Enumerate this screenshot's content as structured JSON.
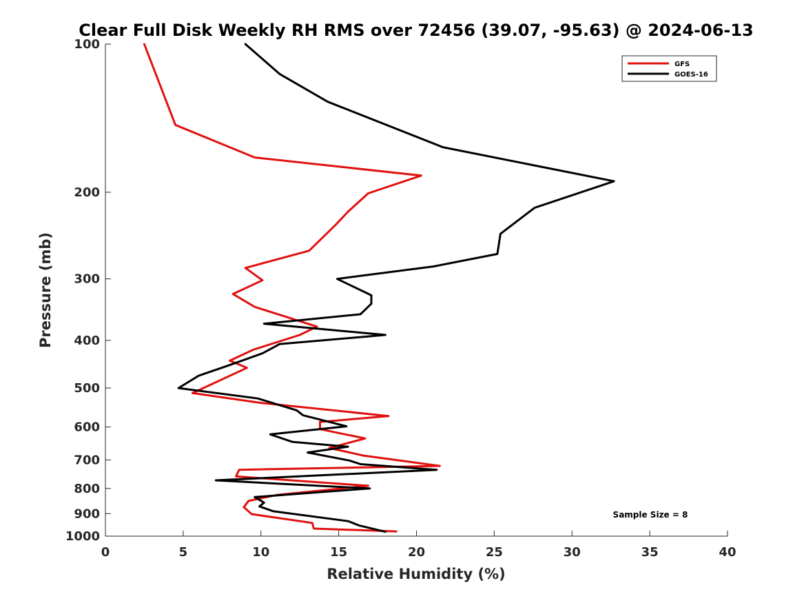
{
  "chart_data": {
    "type": "line",
    "title": "Clear Full Disk Weekly RH RMS over 72456 (39.07, -95.63) @ 2024-06-13",
    "xlabel": "Relative Humidity (%)",
    "ylabel": "Pressure (mb)",
    "xlim": [
      0,
      40
    ],
    "ylim": [
      100,
      1000
    ],
    "yscale": "log",
    "y_reversed": true,
    "x_ticks": [
      0,
      5,
      10,
      15,
      20,
      25,
      30,
      35,
      40
    ],
    "y_ticks": [
      100,
      200,
      300,
      400,
      500,
      600,
      700,
      800,
      900,
      1000
    ],
    "legend_position": "top-right",
    "annotation": "Sample Size = 8",
    "series": [
      {
        "name": "GFS",
        "color": "#e0100f",
        "points": [
          [
            2.5,
            100
          ],
          [
            4.5,
            146
          ],
          [
            9.6,
            170
          ],
          [
            20.3,
            185
          ],
          [
            16.9,
            201
          ],
          [
            15.6,
            219
          ],
          [
            14.8,
            233
          ],
          [
            13.1,
            263
          ],
          [
            9.0,
            285
          ],
          [
            10.1,
            302
          ],
          [
            8.2,
            322
          ],
          [
            9.6,
            342
          ],
          [
            13.6,
            375
          ],
          [
            12.5,
            390
          ],
          [
            9.5,
            418
          ],
          [
            8.0,
            440
          ],
          [
            9.1,
            455
          ],
          [
            5.6,
            512
          ],
          [
            10.0,
            536
          ],
          [
            18.2,
            570
          ],
          [
            13.8,
            586
          ],
          [
            13.8,
            606
          ],
          [
            15.1,
            618
          ],
          [
            16.7,
            633
          ],
          [
            14.4,
            662
          ],
          [
            16.6,
            686
          ],
          [
            21.5,
            720
          ],
          [
            8.6,
            733
          ],
          [
            8.4,
            756
          ],
          [
            16.9,
            790
          ],
          [
            11.0,
            825
          ],
          [
            9.2,
            848
          ],
          [
            8.9,
            873
          ],
          [
            9.4,
            902
          ],
          [
            13.3,
            940
          ],
          [
            13.4,
            965
          ],
          [
            18.7,
            978
          ]
        ]
      },
      {
        "name": "GOES-16",
        "color": "#000000",
        "points": [
          [
            9.0,
            100
          ],
          [
            11.2,
            115
          ],
          [
            14.3,
            131
          ],
          [
            21.7,
            162
          ],
          [
            32.7,
            190
          ],
          [
            27.6,
            215
          ],
          [
            25.4,
            243
          ],
          [
            25.2,
            267
          ],
          [
            21.1,
            283
          ],
          [
            14.9,
            300
          ],
          [
            17.1,
            324
          ],
          [
            17.1,
            337
          ],
          [
            16.4,
            354
          ],
          [
            10.2,
            370
          ],
          [
            18.0,
            390
          ],
          [
            11.2,
            407
          ],
          [
            10.1,
            425
          ],
          [
            7.9,
            450
          ],
          [
            6.0,
            472
          ],
          [
            4.7,
            500
          ],
          [
            9.8,
            525
          ],
          [
            12.3,
            555
          ],
          [
            12.7,
            568
          ],
          [
            15.5,
            598
          ],
          [
            10.6,
            621
          ],
          [
            12.0,
            643
          ],
          [
            15.6,
            658
          ],
          [
            13.0,
            676
          ],
          [
            15.7,
            702
          ],
          [
            16.4,
            714
          ],
          [
            21.3,
            733
          ],
          [
            7.1,
            770
          ],
          [
            17.0,
            800
          ],
          [
            14.0,
            813
          ],
          [
            9.6,
            833
          ],
          [
            10.2,
            855
          ],
          [
            9.9,
            870
          ],
          [
            10.8,
            890
          ],
          [
            15.6,
            932
          ],
          [
            16.3,
            951
          ],
          [
            18.0,
            980
          ]
        ]
      }
    ]
  }
}
